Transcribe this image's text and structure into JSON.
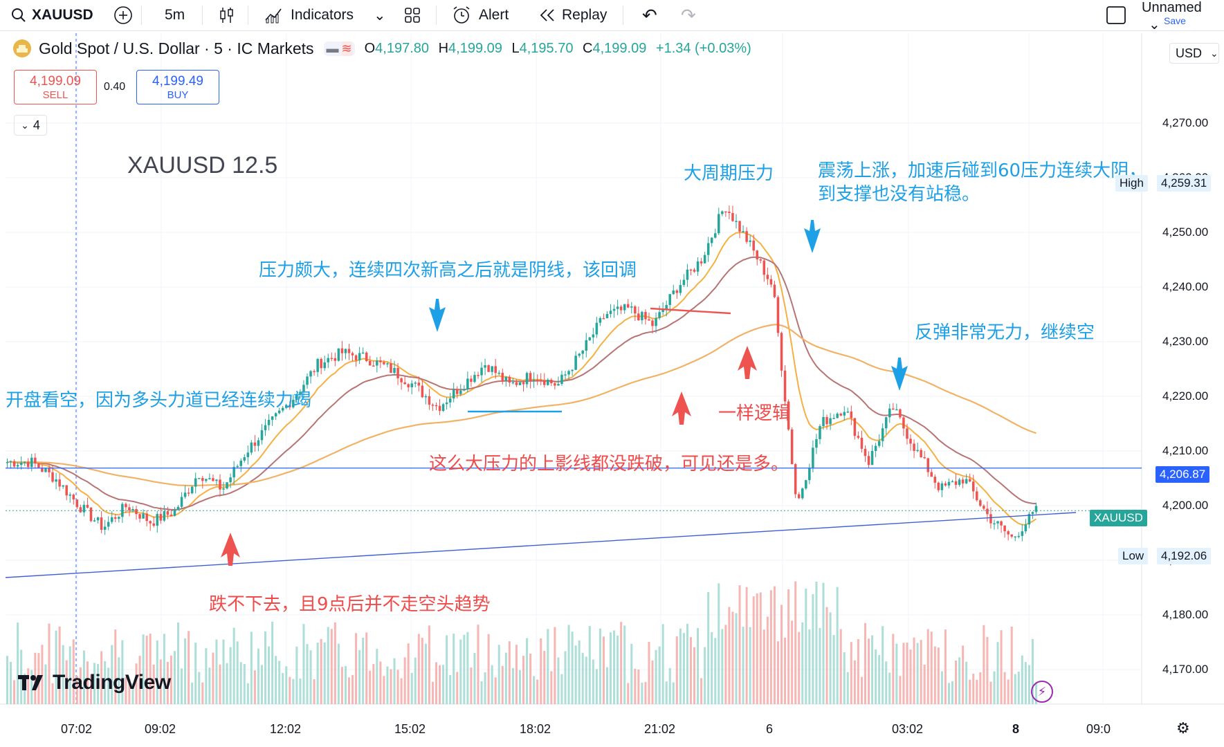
{
  "toolbar": {
    "symbol": "XAUUSD",
    "interval": "5m",
    "indicators": "Indicators",
    "alert": "Alert",
    "replay": "Replay",
    "layout_name": "Unnamed",
    "save": "Save"
  },
  "legend": {
    "title": "Gold Spot / U.S. Dollar · 5 · IC Markets",
    "open_label": "O",
    "open": "4,197.80",
    "high_label": "H",
    "high": "4,199.09",
    "low_label": "L",
    "low": "4,195.70",
    "close_label": "C",
    "close": "4,199.09",
    "change": "+1.34 (+0.03%)",
    "indicator_count": "4"
  },
  "trade": {
    "sell_price": "4,199.09",
    "sell_label": "SELL",
    "spread": "0.40",
    "buy_price": "4,199.49",
    "buy_label": "BUY"
  },
  "currency": "USD",
  "watermark": "XAUUSD 12.5",
  "brand": "TradingView",
  "colors": {
    "up": "#26a69a",
    "down": "#ef5350",
    "annotation_blue": "#1ea0e6",
    "annotation_red": "#ef4b4b",
    "ma_fast": "#f5b041",
    "ma_slow": "#b87474",
    "ma_long": "#f2b266",
    "hline": "#2962ff",
    "trendline": "#3f5fd6"
  },
  "annotations": {
    "a1": "开盘看空，因为多头力道已经连续力竭",
    "a2": "压力颇大，连续四次新高之后就是阴线，该回调",
    "a3": "大周期压力",
    "a4": "震荡上涨，加速后碰到60压力连续大阴，",
    "a5": "到支撑也没有站稳。",
    "a6": "反弹非常无力，继续空",
    "a7": "一样逻辑",
    "a8": "这么大压力的上影线都没跌破，可见还是多。",
    "a9": "跌不下去，且9点后并不走空头趋势"
  },
  "chart_data": {
    "type": "candlestick",
    "symbol": "XAUUSD",
    "timeframe": "5m",
    "price_axis": {
      "ticks": [
        4170,
        4180,
        4190,
        4200,
        4210,
        4220,
        4230,
        4240,
        4250,
        4260,
        4270
      ],
      "tick_labels": [
        "4,170.00",
        "4,180.00",
        "4,190.00",
        "4,200.00",
        "4,210.00",
        "4,220.00",
        "4,230.00",
        "4,240.00",
        "4,250.00",
        "4,260.00",
        "4,270.00"
      ]
    },
    "time_axis": [
      "07:02",
      "09:02",
      "12:02",
      "15:02",
      "18:02",
      "21:02",
      "6",
      "03:02",
      "8",
      "09:0"
    ],
    "markers": {
      "high": {
        "label": "High",
        "value": "4,259.31"
      },
      "low": {
        "label": "Low",
        "value": "4,192.06"
      },
      "hline": {
        "value": "4,206.87"
      },
      "last": {
        "label": "XAUUSD"
      }
    },
    "close_path": [
      [
        "07:00",
        4208
      ],
      [
        "08:00",
        4208
      ],
      [
        "08:30",
        4205
      ],
      [
        "09:00",
        4200
      ],
      [
        "09:20",
        4196
      ],
      [
        "10:00",
        4200
      ],
      [
        "10:40",
        4197
      ],
      [
        "11:00",
        4199
      ],
      [
        "11:30",
        4206
      ],
      [
        "12:00",
        4203
      ],
      [
        "12:30",
        4210
      ],
      [
        "13:00",
        4215
      ],
      [
        "14:00",
        4220
      ],
      [
        "14:40",
        4226
      ],
      [
        "15:00",
        4228
      ],
      [
        "15:20",
        4227
      ],
      [
        "16:00",
        4225
      ],
      [
        "17:00",
        4222
      ],
      [
        "17:30",
        4218
      ],
      [
        "18:00",
        4222
      ],
      [
        "18:40",
        4226
      ],
      [
        "19:20",
        4222
      ],
      [
        "20:00",
        4224
      ],
      [
        "21:00",
        4222
      ],
      [
        "21:40",
        4228
      ],
      [
        "22:00",
        4235
      ],
      [
        "22:40",
        4236
      ],
      [
        "23:00",
        4233
      ],
      [
        "23:20",
        4240
      ],
      [
        "23:40",
        4245
      ],
      [
        "00:00",
        4255
      ],
      [
        "00:05",
        4248
      ],
      [
        "00:30",
        4240
      ],
      [
        "00:40",
        4200
      ],
      [
        "01:00",
        4215
      ],
      [
        "01:40",
        4218
      ],
      [
        "02:00",
        4208
      ],
      [
        "02:40",
        4218
      ],
      [
        "03:00",
        4210
      ],
      [
        "03:40",
        4203
      ],
      [
        "04:20",
        4205
      ],
      [
        "05:00",
        4198
      ],
      [
        "05:30",
        4194
      ],
      [
        "05:45",
        4199
      ]
    ]
  }
}
